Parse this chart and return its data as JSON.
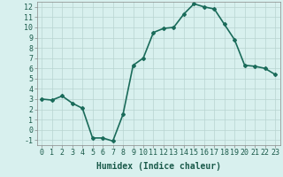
{
  "x": [
    0,
    1,
    2,
    3,
    4,
    5,
    6,
    7,
    8,
    9,
    10,
    11,
    12,
    13,
    14,
    15,
    16,
    17,
    18,
    19,
    20,
    21,
    22,
    23
  ],
  "y": [
    3.0,
    2.9,
    3.3,
    2.6,
    2.1,
    -0.8,
    -0.8,
    -1.1,
    1.5,
    6.3,
    7.0,
    9.5,
    9.9,
    10.0,
    11.3,
    12.3,
    12.0,
    11.8,
    10.3,
    8.8,
    6.3,
    6.2,
    6.0,
    5.4
  ],
  "line_color": "#1a6b5a",
  "marker": "D",
  "marker_size": 2,
  "bg_color": "#d8f0ee",
  "grid_color": "#b8d4d0",
  "xlabel": "Humidex (Indice chaleur)",
  "xlim": [
    -0.5,
    23.5
  ],
  "ylim": [
    -1.5,
    12.5
  ],
  "yticks": [
    -1,
    0,
    1,
    2,
    3,
    4,
    5,
    6,
    7,
    8,
    9,
    10,
    11,
    12
  ],
  "xticks": [
    0,
    1,
    2,
    3,
    4,
    5,
    6,
    7,
    8,
    9,
    10,
    11,
    12,
    13,
    14,
    15,
    16,
    17,
    18,
    19,
    20,
    21,
    22,
    23
  ],
  "xlabel_fontsize": 7,
  "tick_fontsize": 6,
  "line_width": 1.2
}
